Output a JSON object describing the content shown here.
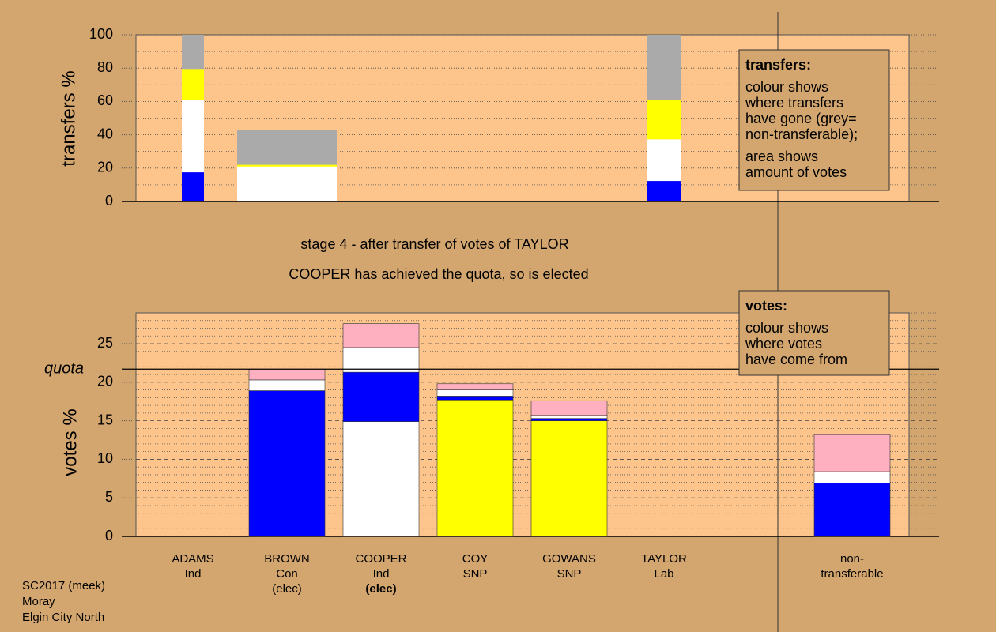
{
  "chart_data": [
    {
      "type": "bar",
      "stacked": true,
      "ylabel": "transfers %",
      "ylim": [
        0,
        100
      ],
      "yticks": [
        0,
        20,
        40,
        60,
        80,
        100
      ],
      "minor_yticks": [
        10,
        30,
        50,
        70,
        90
      ],
      "grid": true,
      "bars": [
        {
          "segments": [
            {
              "value": 17.5,
              "color": "#0000ff"
            },
            {
              "value": 43.5,
              "color": "#ffffff"
            },
            {
              "value": 18.5,
              "color": "#ffff00"
            },
            {
              "value": 20.5,
              "color": "#aaaaaa"
            }
          ]
        },
        {
          "segments": [
            {
              "value": 21,
              "color": "#ffffff"
            },
            {
              "value": 1,
              "color": "#ffff00"
            },
            {
              "value": 21,
              "color": "#aaaaaa"
            }
          ]
        },
        null,
        null,
        null,
        {
          "segments": [
            {
              "value": 12.3,
              "color": "#0000ff"
            },
            {
              "value": 25,
              "color": "#ffffff"
            },
            {
              "value": 23.5,
              "color": "#ffff00"
            },
            {
              "value": 39.2,
              "color": "#aaaaaa"
            }
          ]
        },
        null
      ],
      "legend": {
        "title": "transfers:",
        "lines": [
          "colour shows",
          "where transfers",
          "have gone (grey=",
          "non-transferable);"
        ],
        "lines2": [
          "area shows",
          "amount of votes"
        ]
      }
    },
    {
      "type": "bar",
      "stacked": true,
      "ylabel": "votes %",
      "ylim": [
        0,
        29
      ],
      "yticks": [
        0,
        5,
        10,
        15,
        20,
        25
      ],
      "minor_yticks": [
        1,
        2,
        3,
        4,
        6,
        7,
        8,
        9,
        11,
        12,
        13,
        14,
        16,
        17,
        18,
        19,
        21,
        22,
        23,
        24,
        26,
        27,
        28,
        29
      ],
      "grid": true,
      "quota": {
        "value": 21.7,
        "label": "quota"
      },
      "categories": [
        [
          "ADAMS",
          "Ind"
        ],
        [
          "BROWN",
          "Con",
          "(elec)"
        ],
        [
          "COOPER",
          "Ind",
          "(elec)"
        ],
        [
          "COY",
          "SNP"
        ],
        [
          "GOWANS",
          "SNP"
        ],
        [
          "TAYLOR",
          "Lab"
        ],
        [
          "non-",
          "transferable"
        ]
      ],
      "bars": [
        {
          "segments": []
        },
        {
          "segments": [
            {
              "value": 18.9,
              "color": "#0000ff"
            },
            {
              "value": 1.4,
              "color": "#ffffff"
            },
            {
              "value": 1.4,
              "color": "#ffb0c0"
            }
          ]
        },
        {
          "segments": [
            {
              "value": 14.9,
              "color": "#ffffff"
            },
            {
              "value": 6.4,
              "color": "#0000ff"
            },
            {
              "value": 3.2,
              "color": "#ffffff"
            },
            {
              "value": 3.1,
              "color": "#ffb0c0"
            }
          ]
        },
        {
          "segments": [
            {
              "value": 17.7,
              "color": "#ffff00"
            },
            {
              "value": 0.5,
              "color": "#0000ff"
            },
            {
              "value": 0.8,
              "color": "#ffffff"
            },
            {
              "value": 0.8,
              "color": "#ffb0c0"
            }
          ]
        },
        {
          "segments": [
            {
              "value": 15.0,
              "color": "#ffff00"
            },
            {
              "value": 0.3,
              "color": "#0000ff"
            },
            {
              "value": 0.4,
              "color": "#ffffff"
            },
            {
              "value": 1.9,
              "color": "#ffb0c0"
            }
          ]
        },
        {
          "segments": []
        },
        {
          "segments": [
            {
              "value": 6.9,
              "color": "#0000ff"
            },
            {
              "value": 1.5,
              "color": "#ffffff"
            },
            {
              "value": 4.8,
              "color": "#ffb0c0"
            }
          ]
        }
      ],
      "legend": {
        "title": "votes:",
        "lines": [
          "colour shows",
          "where votes",
          "have come from"
        ]
      }
    }
  ],
  "stage": "stage 4 - after transfer of votes of TAYLOR",
  "status": "COOPER has achieved the quota, so is elected",
  "footer": [
    "SC2017 (meek)",
    "Moray",
    "Elgin City North"
  ]
}
